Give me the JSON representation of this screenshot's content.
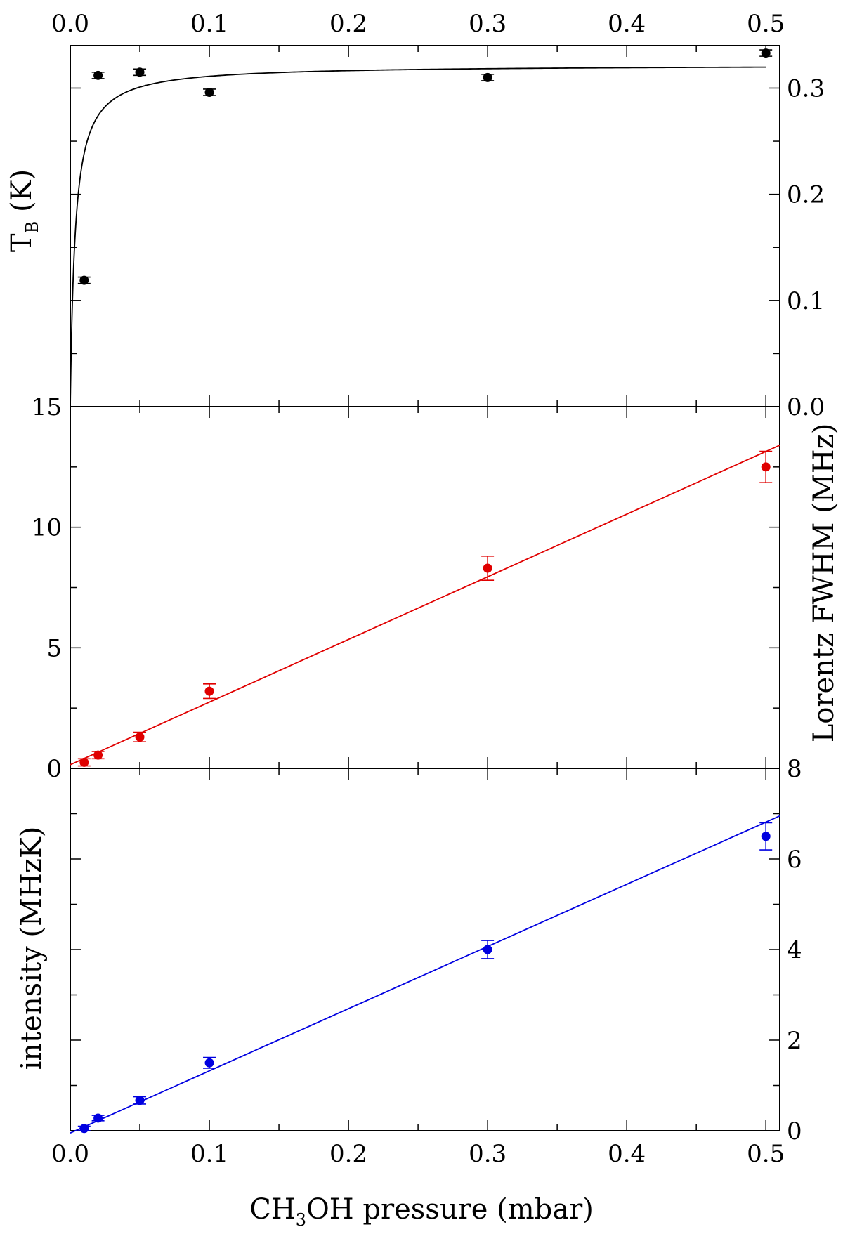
{
  "chart_data": [
    {
      "type": "scatter",
      "panel": "top",
      "ylabel": "T",
      "ylabel_sub": "B",
      "ylabel_suffix": " (K)",
      "xlim": [
        0,
        0.51
      ],
      "ylim": [
        0,
        0.34
      ],
      "top_x_ticks": [
        "0.0",
        "0.1",
        "0.2",
        "0.3",
        "0.4",
        "0.5"
      ],
      "y_ticks_right": [
        "0.0",
        "0.1",
        "0.2",
        "0.3"
      ],
      "color": "#000000",
      "points": [
        {
          "x": 0.01,
          "y": 0.119,
          "err": 0.003
        },
        {
          "x": 0.02,
          "y": 0.312,
          "err": 0.003
        },
        {
          "x": 0.05,
          "y": 0.315,
          "err": 0.003
        },
        {
          "x": 0.1,
          "y": 0.296,
          "err": 0.003
        },
        {
          "x": 0.3,
          "y": 0.31,
          "err": 0.003
        },
        {
          "x": 0.5,
          "y": 0.333,
          "err": 0.003
        }
      ],
      "fit": {
        "kind": "saturation",
        "ymax": 0.322,
        "k": 0.0035
      }
    },
    {
      "type": "scatter",
      "panel": "middle",
      "ylabel": "Lorentz FWHM (MHz)",
      "xlim": [
        0,
        0.51
      ],
      "ylim": [
        0,
        15
      ],
      "y_ticks_left": [
        "0",
        "5",
        "10",
        "15"
      ],
      "color": "#e00000",
      "points": [
        {
          "x": 0.01,
          "y": 0.25,
          "err": 0.15
        },
        {
          "x": 0.02,
          "y": 0.55,
          "err": 0.15
        },
        {
          "x": 0.05,
          "y": 1.3,
          "err": 0.2
        },
        {
          "x": 0.1,
          "y": 3.2,
          "err": 0.3
        },
        {
          "x": 0.3,
          "y": 8.3,
          "err": 0.5
        },
        {
          "x": 0.5,
          "y": 12.5,
          "err": 0.65
        }
      ],
      "fit": {
        "kind": "linear",
        "x": [
          0,
          0.51
        ],
        "y": [
          0.15,
          13.4
        ]
      }
    },
    {
      "type": "scatter",
      "panel": "bottom",
      "ylabel": "intensity (MHzK)",
      "xlabel_pre": "CH",
      "xlabel_sub": "3",
      "xlabel_post": "OH pressure (mbar)",
      "xlim": [
        0,
        0.51
      ],
      "ylim": [
        0,
        8
      ],
      "x_ticks": [
        "0.0",
        "0.1",
        "0.2",
        "0.3",
        "0.4",
        "0.5"
      ],
      "y_ticks_right": [
        "0",
        "2",
        "4",
        "6",
        "8"
      ],
      "color": "#0000e0",
      "points": [
        {
          "x": 0.01,
          "y": 0.05,
          "err": 0.05
        },
        {
          "x": 0.02,
          "y": 0.28,
          "err": 0.06
        },
        {
          "x": 0.05,
          "y": 0.67,
          "err": 0.08
        },
        {
          "x": 0.1,
          "y": 1.5,
          "err": 0.12
        },
        {
          "x": 0.3,
          "y": 4.0,
          "err": 0.2
        },
        {
          "x": 0.5,
          "y": 6.5,
          "err": 0.3
        }
      ],
      "fit": {
        "kind": "linear",
        "x": [
          0,
          0.51
        ],
        "y": [
          -0.05,
          6.95
        ]
      }
    }
  ]
}
